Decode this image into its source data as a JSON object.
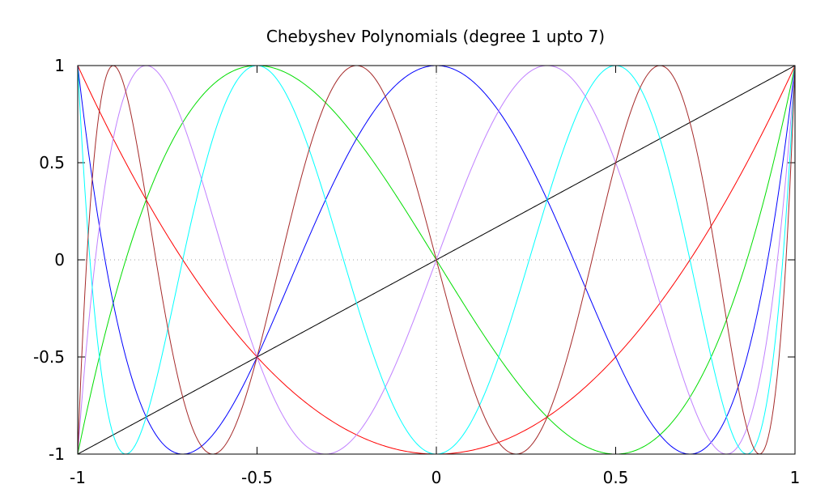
{
  "chart_data": {
    "type": "line",
    "title": "Chebyshev Polynomials (degree 1 upto 7)",
    "xlabel": "",
    "ylabel": "",
    "xlim": [
      -1,
      1
    ],
    "ylim": [
      -1,
      1
    ],
    "x_ticks": [
      {
        "value": -1,
        "label": "-1"
      },
      {
        "value": -0.5,
        "label": "-0.5"
      },
      {
        "value": 0,
        "label": "0"
      },
      {
        "value": 0.5,
        "label": "0.5"
      },
      {
        "value": 1,
        "label": "1"
      }
    ],
    "y_ticks": [
      {
        "value": -1,
        "label": "-1"
      },
      {
        "value": -0.5,
        "label": "-0.5"
      },
      {
        "value": 0,
        "label": "0"
      },
      {
        "value": 0.5,
        "label": "0.5"
      },
      {
        "value": 1,
        "label": "1"
      }
    ],
    "grid": {
      "x": [
        0
      ],
      "y": [
        0
      ]
    },
    "x": [
      -1,
      -0.9,
      -0.8,
      -0.7,
      -0.6,
      -0.5,
      -0.4,
      -0.3,
      -0.2,
      -0.1,
      0,
      0.1,
      0.2,
      0.3,
      0.4,
      0.5,
      0.6,
      0.7,
      0.8,
      0.9,
      1
    ],
    "series": [
      {
        "degree": 1,
        "color": "#000000",
        "values": [
          -1,
          -0.9,
          -0.8,
          -0.7,
          -0.6,
          -0.5,
          -0.4,
          -0.3,
          -0.2,
          -0.1,
          0,
          0.1,
          0.2,
          0.3,
          0.4,
          0.5,
          0.6,
          0.7,
          0.8,
          0.9,
          1
        ]
      },
      {
        "degree": 2,
        "color": "#ff0000",
        "values": [
          1,
          0.62,
          0.28,
          -0.02,
          -0.28,
          -0.5,
          -0.68,
          -0.82,
          -0.92,
          -0.98,
          -1,
          -0.98,
          -0.92,
          -0.82,
          -0.68,
          -0.5,
          -0.28,
          -0.02,
          0.28,
          0.62,
          1
        ]
      },
      {
        "degree": 3,
        "color": "#00dd00",
        "values": [
          -1,
          -0.216,
          0.352,
          0.728,
          0.936,
          1,
          0.944,
          0.792,
          0.568,
          0.296,
          0,
          -0.296,
          -0.568,
          -0.792,
          -0.944,
          -1,
          -0.936,
          -0.728,
          -0.352,
          0.216,
          1
        ]
      },
      {
        "degree": 4,
        "color": "#0000ff",
        "values": [
          1,
          -0.2312,
          -0.8432,
          -0.9992,
          -0.8432,
          -0.5,
          -0.0752,
          0.3448,
          0.6928,
          0.9208,
          1,
          0.9208,
          0.6928,
          0.3448,
          -0.0752,
          -0.5,
          -0.8432,
          -0.9992,
          -0.8432,
          -0.2312,
          1
        ]
      },
      {
        "degree": 5,
        "color": "#c080ff",
        "values": [
          -1,
          0.6379,
          0.9971,
          0.5111,
          -0.0758,
          -0.5,
          -0.8238,
          -0.9091,
          -0.8451,
          -0.4766,
          0,
          0.4766,
          0.8451,
          0.9091,
          0.8238,
          0.5,
          0.0758,
          -0.5111,
          -0.9971,
          -0.6379,
          1
        ]
      },
      {
        "degree": 6,
        "color": "#00ffff",
        "values": [
          1,
          -0.9794,
          -0.0197,
          0.9826,
          0.8329,
          1,
          0.963,
          0.2975,
          -0.5284,
          -0.9033,
          -1,
          -0.9033,
          -0.5284,
          0.2975,
          0.963,
          1,
          0.8329,
          0.9826,
          -0.0197,
          -0.9794,
          1
        ]
      },
      {
        "degree": 7,
        "color": "#a52a2a",
        "values": [
          -1,
          0.9143,
          -0.9651,
          -0.3665,
          0.0737,
          0.5,
          0.9829,
          0.0885,
          -0.4662,
          -0.2659,
          0,
          0.2659,
          0.4662,
          -0.0885,
          -0.9829,
          -0.5,
          -0.0737,
          0.3665,
          0.9651,
          -0.9143,
          1
        ]
      }
    ]
  }
}
